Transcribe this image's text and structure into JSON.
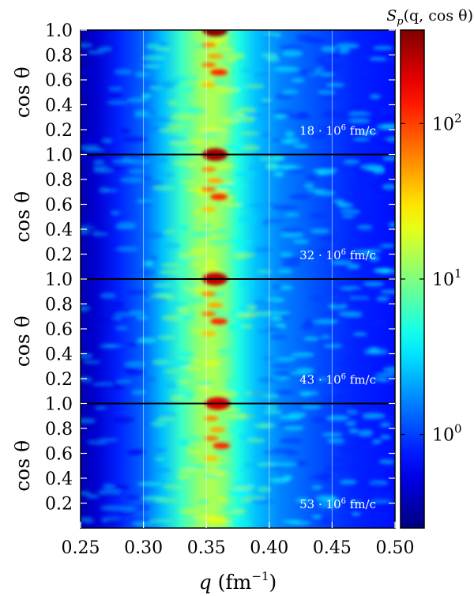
{
  "chart_data": {
    "type": "heatmap",
    "title": "",
    "colorbar_label": "S_p(q, cos θ)",
    "colorbar_label_parts": {
      "S": "S",
      "sub": "p",
      "args": "(q, cos θ)"
    },
    "colorbar_scale": "log",
    "colorbar_range": [
      0.25,
      400
    ],
    "colorbar_ticks": [
      {
        "value": 1,
        "base": "10",
        "exp": "0"
      },
      {
        "value": 10,
        "base": "10",
        "exp": "1"
      },
      {
        "value": 100,
        "base": "10",
        "exp": "2"
      }
    ],
    "colormap": [
      "#00007f",
      "#0000ff",
      "#007fff",
      "#00ffff",
      "#7fff7f",
      "#ffff00",
      "#ff7f00",
      "#ff0000",
      "#7f0000"
    ],
    "xlabel": "q (fm^-1)",
    "xlabel_parts": {
      "var": "q",
      "unit": "fm",
      "exp": "−1"
    },
    "xlim": [
      0.25,
      0.5
    ],
    "xticks": [
      0.25,
      0.3,
      0.35,
      0.4,
      0.45,
      0.5
    ],
    "xtick_labels": [
      "0.25",
      "0.30",
      "0.35",
      "0.40",
      "0.45",
      "0.50"
    ],
    "ylabel": "cos θ",
    "ylim": [
      0,
      1
    ],
    "yticks": [
      0.2,
      0.4,
      0.6,
      0.8,
      1.0
    ],
    "ytick_labels": [
      "0.2",
      "0.4",
      "0.6",
      "0.8",
      "1.0"
    ],
    "grid": true,
    "panels": [
      {
        "time_label": "18 · 10^6 fm/c",
        "time_parts": {
          "mant": "18",
          "exp": "6",
          "unit": "fm/c"
        },
        "peak_q": 0.355,
        "peak_value": 350
      },
      {
        "time_label": "32 · 10^6 fm/c",
        "time_parts": {
          "mant": "32",
          "exp": "6",
          "unit": "fm/c"
        },
        "peak_q": 0.355,
        "peak_value": 300
      },
      {
        "time_label": "43 · 10^6 fm/c",
        "time_parts": {
          "mant": "43",
          "exp": "6",
          "unit": "fm/c"
        },
        "peak_q": 0.355,
        "peak_value": 250
      },
      {
        "time_label": "53 · 10^6 fm/c",
        "time_parts": {
          "mant": "53",
          "exp": "6",
          "unit": "fm/c"
        },
        "peak_q": 0.357,
        "peak_value": 200
      }
    ]
  }
}
